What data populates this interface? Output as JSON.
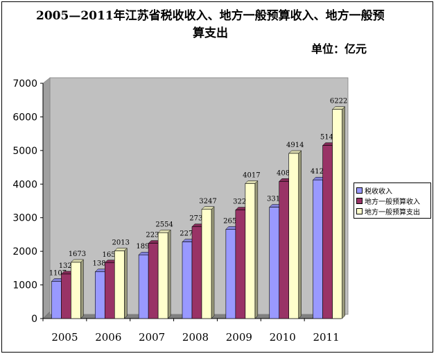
{
  "header": {
    "title_line1": "2005—2011年江苏省税收收入、地方一般预算收入、地方一般预",
    "title_line2": "算支出",
    "unit": "单位：亿元"
  },
  "colors": {
    "plot_background": "#c0c0c0",
    "税收收入": "#9999ff",
    "地方一般预算收入": "#993366",
    "地方一般预算支出": "#ffffcc"
  },
  "chart_data": {
    "type": "bar",
    "title": "2005—2011年江苏省税收收入、地方一般预算收入、地方一般预算支出",
    "unit": "单位：亿元",
    "categories": [
      "2005",
      "2006",
      "2007",
      "2008",
      "2009",
      "2010",
      "2011"
    ],
    "series": [
      {
        "name": "税收收入",
        "values": [
          1107,
          1389,
          1895,
          2279,
          2655,
          3313,
          4125
        ]
      },
      {
        "name": "地方一般预算收入",
        "values": [
          1323,
          1657,
          2238,
          2731,
          3229,
          4080,
          5149
        ]
      },
      {
        "name": "地方一般预算支出",
        "values": [
          1673,
          2013,
          2554,
          3247,
          4017,
          4914,
          6222
        ]
      }
    ],
    "ylim": [
      0,
      7000
    ],
    "yticks": [
      0,
      1000,
      2000,
      3000,
      4000,
      5000,
      6000,
      7000
    ],
    "xlabel": "",
    "ylabel": "",
    "grid": false,
    "legend": "right"
  }
}
